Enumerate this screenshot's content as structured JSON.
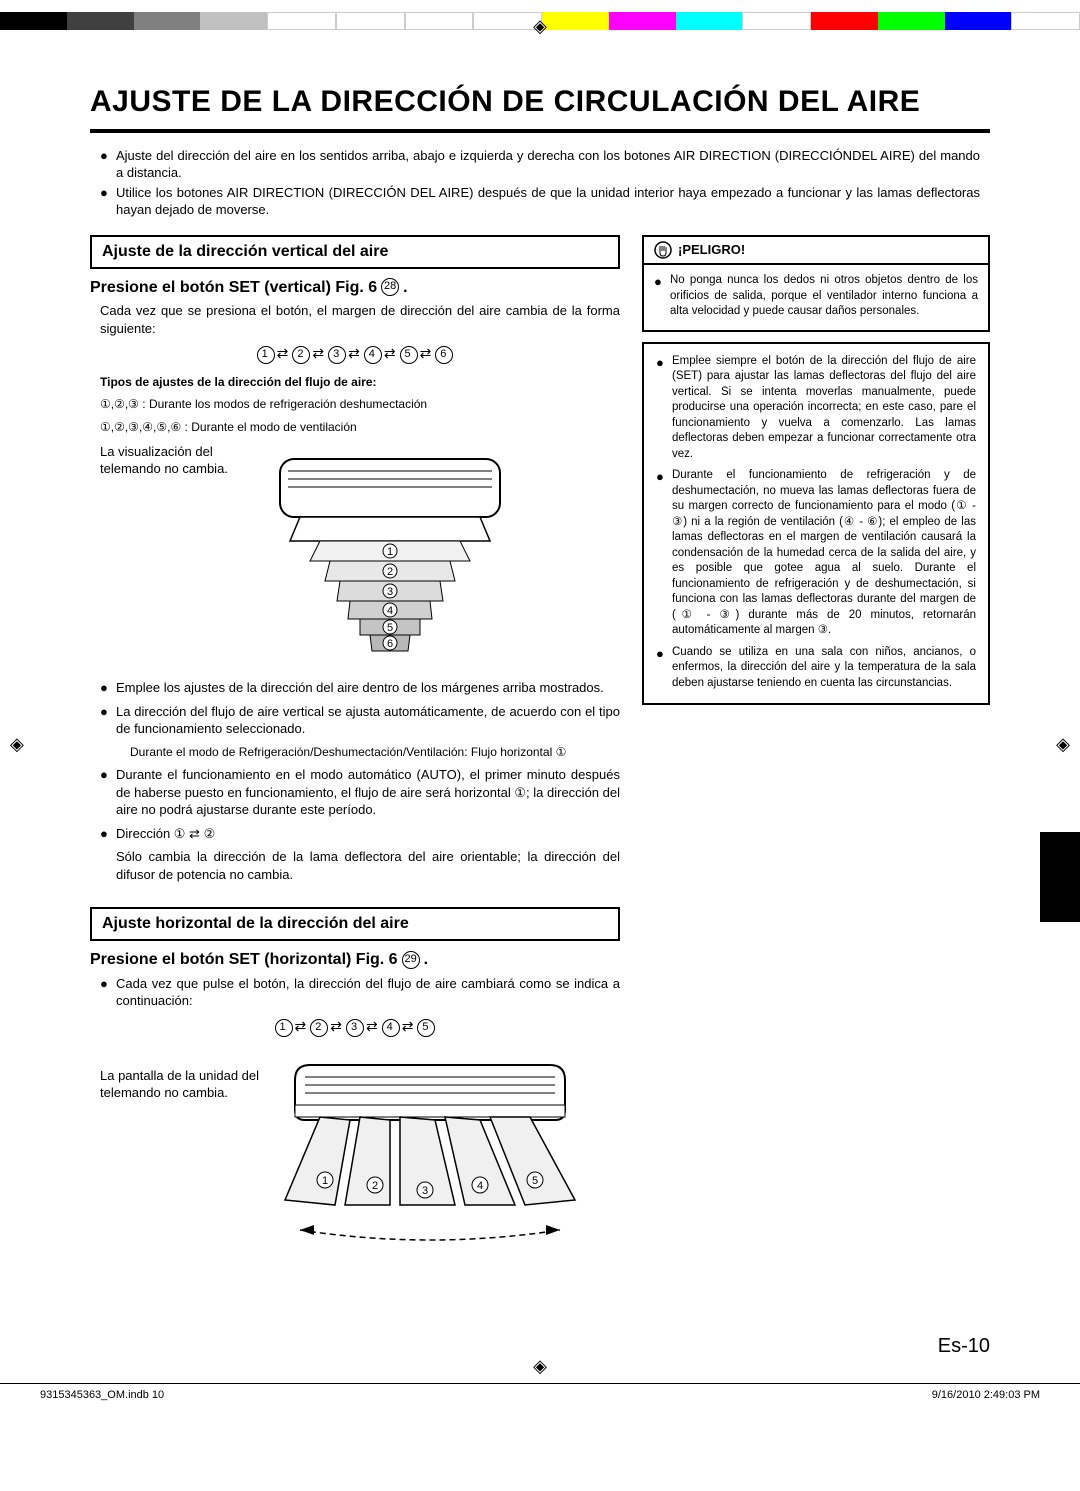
{
  "colorbar": [
    "#000000",
    "#404040",
    "#808080",
    "#c0c0c0",
    "#ffffff",
    "#ffffff",
    "#ffffff",
    "#ffffff",
    "#ffff00",
    "#ff00ff",
    "#00ffff",
    "#ffffff",
    "#ff0000",
    "#00ff00",
    "#0000ff",
    "#ffffff"
  ],
  "reg_mark": "◈",
  "title": "AJUSTE DE LA DIRECCIÓN DE CIRCULACIÓN DEL AIRE",
  "intro": [
    "Ajuste del dirección del aire en los sentidos arriba, abajo e izquierda y derecha con los botones AIR DIRECTION (DIRECCIÓNDEL AIRE) del mando a distancia.",
    "Utilice los botones AIR DIRECTION (DIRECCIÓN DEL AIRE) después de que la unidad interior haya empezado a funcionar y las lamas deflectoras hayan dejado de moverse."
  ],
  "sec1": {
    "head": "Ajuste de la dirección vertical del aire",
    "sub": "Presione el botón SET (vertical) Fig. 6",
    "sub_circ": "28",
    "p1": "Cada vez que se presiona el botón, el margen de dirección del aire cambia de la forma siguiente:",
    "seq": [
      "1",
      "2",
      "3",
      "4",
      "5",
      "6"
    ],
    "tipos_head": "Tipos de ajustes de la dirección del flujo de aire:",
    "tipos_l1_pre": "①,②,③ :",
    "tipos_l1": "Durante los modos de refrigeración deshumectación",
    "tipos_l2_pre": "①,②,③,④,⑤,⑥ :",
    "tipos_l2": "Durante el modo de ventilación",
    "side1": "La visualización del",
    "side2": "telemando no cambia.",
    "bul": [
      "Emplee los ajustes de la dirección del aire dentro de los márgenes arriba mostrados.",
      "La dirección del flujo de aire vertical se ajusta automáticamente, de acuerdo con el tipo de funcionamiento seleccionado.",
      "Durante el funcionamiento en el modo automático (AUTO), el primer minuto después de haberse puesto en funcionamiento, el flujo de aire será horizontal ①; la dirección del aire no podrá ajustarse durante este período.",
      "Dirección ① ⇄ ②"
    ],
    "note": "Durante el modo de Refrigeración/Deshumectación/Ventilación: Flujo horizontal ①",
    "tail": "Sólo cambia la dirección de la lama deflectora del aire orientable; la dirección del difusor de potencia no cambia."
  },
  "sec2": {
    "head": "Ajuste horizontal de la dirección del aire",
    "sub": "Presione el botón SET (horizontal) Fig. 6",
    "sub_circ": "29",
    "p1": "Cada vez que pulse el botón, la dirección del flujo de aire cambiará como se indica a continuación:",
    "seq": [
      "1",
      "2",
      "3",
      "4",
      "5"
    ],
    "side1": "La pantalla de la unidad del",
    "side2": "telemando no cambia."
  },
  "danger": {
    "head": "¡PELIGRO!",
    "box1": "No ponga nunca los dedos ni otros objetos dentro de los orificios de salida, porque el ventilador interno funciona a alta velocidad y puede causar daños personales.",
    "box2": [
      "Emplee siempre el botón de la dirección del flujo de aire (SET) para ajustar las lamas deflectoras del flujo del aire vertical. Si se intenta moverlas manualmente, puede producirse una operación incorrecta; en este caso, pare el funcionamiento y vuelva a comenzarlo. Las lamas deflectoras deben empezar a funcionar correctamente otra vez.",
      "Durante el funcionamiento de refrigeración y de deshumectación, no mueva las lamas deflectoras fuera de su margen correcto de funcionamiento para el modo (① - ③) ni a la región de ventilación (④ - ⑥); el empleo de las lamas deflectoras en el margen de ventilación causará la condensación de la humedad cerca de la salida del aire, y es posible que gotee agua al suelo. Durante el funcionamiento de refrigeración y de deshumectación, si funciona con las lamas deflectoras durante del margen de (① - ③) durante más de 20 minutos, retornarán automáticamente al margen ③.",
      "Cuando se utiliza en una sala con niños, ancianos, o enfermos, la dirección del aire y la temperatura de la sala deben ajustarse teniendo en cuenta las circunstancias."
    ]
  },
  "page_number": "Es-10",
  "footer_left": "9315345363_OM.indb   10",
  "footer_right": "9/16/2010   2:49:03 PM"
}
